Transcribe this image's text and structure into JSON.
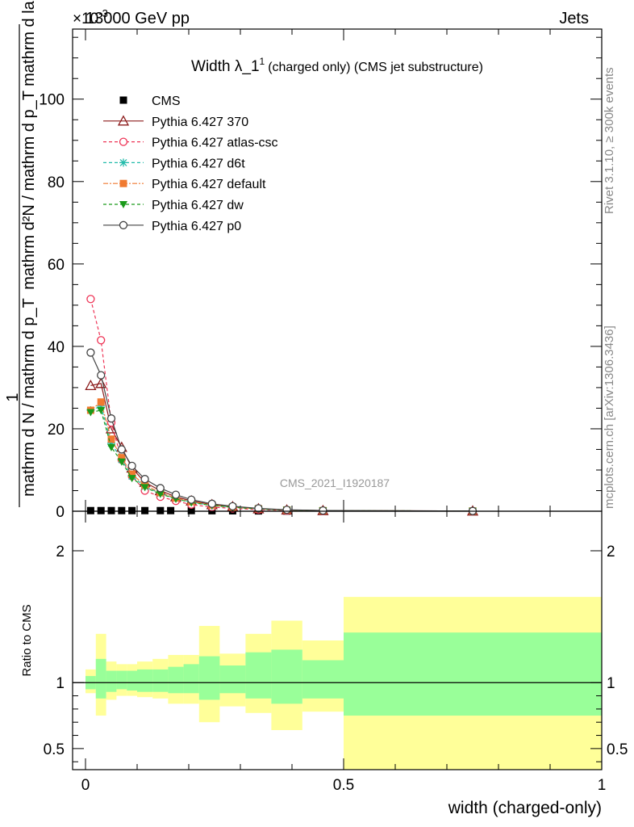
{
  "header": {
    "left": "13000 GeV pp",
    "right": "Jets",
    "exponent": "×10",
    "exp_sup": "-3"
  },
  "side": {
    "top": "Rivet 3.1.10, ≥ 300k events",
    "bottom": "mcplots.cern.ch [arXiv:1306.3436]"
  },
  "watermark": "CMS_2021_I1920187",
  "chart_data": [
    {
      "type": "scatter",
      "title": "Width λ_1",
      "title_sup": "1",
      "subtitle": "(charged only) (CMS jet substructure)",
      "ylabel_frac_num": "1",
      "ylabel_frac_den": "mathrm d N / mathrm d p_T",
      "ylabel_right": "mathrm d²N / mathrm d p_T mathrm d lambda",
      "ylim": [
        0,
        117
      ],
      "yticks": [
        "0",
        "20",
        "40",
        "60",
        "80",
        "100"
      ],
      "xlim": [
        -0.025,
        1.0
      ],
      "legend_position": "top-left",
      "series": [
        {
          "name": "CMS",
          "color": "#000000",
          "marker": "square",
          "x": [
            0.01,
            0.03,
            0.05,
            0.07,
            0.09,
            0.115,
            0.145,
            0.165,
            0.205,
            0.245,
            0.285,
            0.335,
            0.39,
            0.46,
            0.75
          ],
          "y": [
            0.15,
            0.15,
            0.15,
            0.15,
            0.15,
            0.15,
            0.15,
            0.15,
            0.15,
            0.12,
            0.1,
            0.08,
            0.05,
            0.03,
            0.01
          ]
        },
        {
          "name": "Pythia 6.427 370",
          "color": "#8b1a1a",
          "marker": "triangle",
          "dash": "",
          "x": [
            0.01,
            0.03,
            0.05,
            0.07,
            0.09,
            0.115,
            0.145,
            0.175,
            0.205,
            0.245,
            0.285,
            0.335,
            0.39,
            0.46,
            0.75
          ],
          "y": [
            30.5,
            31.0,
            20.0,
            15.5,
            10.5,
            7.0,
            5.0,
            3.5,
            2.5,
            1.6,
            1.1,
            0.6,
            0.3,
            0.15,
            0.05
          ]
        },
        {
          "name": "Pythia 6.427 atlas-csc",
          "color": "#ee3355",
          "marker": "circle-open",
          "dash": "4,3",
          "x": [
            0.01,
            0.03,
            0.05,
            0.07,
            0.09,
            0.115,
            0.145,
            0.175,
            0.205,
            0.245,
            0.285,
            0.335,
            0.39,
            0.46,
            0.75
          ],
          "y": [
            51.5,
            41.5,
            21.5,
            12.5,
            8.5,
            5.0,
            3.5,
            2.5,
            1.6,
            1.0,
            0.7,
            0.4,
            0.2,
            0.1,
            0.03
          ]
        },
        {
          "name": "Pythia 6.427 d6t",
          "color": "#22bbaa",
          "marker": "star",
          "dash": "4,3",
          "x": [
            0.01,
            0.03,
            0.05,
            0.07,
            0.09,
            0.115,
            0.145,
            0.175,
            0.205,
            0.245,
            0.285,
            0.335,
            0.39,
            0.46,
            0.75
          ],
          "y": [
            24.5,
            25.5,
            16.5,
            12.5,
            8.5,
            6.0,
            4.3,
            3.1,
            2.2,
            1.4,
            1.0,
            0.6,
            0.3,
            0.15,
            0.05
          ]
        },
        {
          "name": "Pythia 6.427 default",
          "color": "#f07a30",
          "marker": "square",
          "dash": "6,2,2,2",
          "x": [
            0.01,
            0.03,
            0.05,
            0.07,
            0.09,
            0.115,
            0.145,
            0.175,
            0.205,
            0.245,
            0.285,
            0.335,
            0.39,
            0.46,
            0.75
          ],
          "y": [
            24.5,
            26.5,
            17.5,
            13.0,
            9.0,
            6.3,
            4.5,
            3.2,
            2.3,
            1.5,
            1.0,
            0.6,
            0.3,
            0.15,
            0.05
          ]
        },
        {
          "name": "Pythia 6.427 dw",
          "color": "#1a9a1a",
          "marker": "triangle-down",
          "dash": "4,3",
          "x": [
            0.01,
            0.03,
            0.05,
            0.07,
            0.09,
            0.115,
            0.145,
            0.175,
            0.205,
            0.245,
            0.285,
            0.335,
            0.39,
            0.46,
            0.75
          ],
          "y": [
            24.0,
            24.5,
            15.5,
            12.0,
            8.0,
            5.8,
            4.2,
            3.0,
            2.1,
            1.4,
            0.95,
            0.55,
            0.3,
            0.15,
            0.05
          ]
        },
        {
          "name": "Pythia 6.427 p0",
          "color": "#444444",
          "marker": "circle-open",
          "dash": "",
          "x": [
            0.01,
            0.03,
            0.05,
            0.07,
            0.09,
            0.115,
            0.145,
            0.175,
            0.205,
            0.245,
            0.285,
            0.335,
            0.39,
            0.46,
            0.75
          ],
          "y": [
            38.5,
            33.0,
            22.5,
            15.0,
            11.0,
            7.8,
            5.6,
            4.0,
            2.8,
            1.8,
            1.2,
            0.7,
            0.35,
            0.17,
            0.06
          ]
        }
      ]
    },
    {
      "type": "area",
      "ylabel": "Ratio to CMS",
      "xlabel": "width (charged-only)",
      "ylim": [
        0.34,
        2.3
      ],
      "xlim": [
        -0.025,
        1.0
      ],
      "yticks": [
        "0.5",
        "1",
        "2"
      ],
      "xticks": [
        "0",
        "0.5",
        "1"
      ],
      "reference": 1.0,
      "bands": {
        "bins": [
          [
            0.0,
            0.02
          ],
          [
            0.02,
            0.04
          ],
          [
            0.04,
            0.06
          ],
          [
            0.06,
            0.08
          ],
          [
            0.08,
            0.1
          ],
          [
            0.1,
            0.13
          ],
          [
            0.13,
            0.16
          ],
          [
            0.16,
            0.19
          ],
          [
            0.19,
            0.22
          ],
          [
            0.22,
            0.26
          ],
          [
            0.26,
            0.31
          ],
          [
            0.31,
            0.36
          ],
          [
            0.36,
            0.42
          ],
          [
            0.42,
            0.5
          ],
          [
            0.5,
            1.0
          ]
        ],
        "stat_lo": [
          0.95,
          0.88,
          0.93,
          0.95,
          0.94,
          0.93,
          0.93,
          0.92,
          0.92,
          0.87,
          0.92,
          0.88,
          0.84,
          0.88,
          0.75
        ],
        "stat_hi": [
          1.05,
          1.18,
          1.09,
          1.09,
          1.09,
          1.1,
          1.1,
          1.12,
          1.14,
          1.2,
          1.13,
          1.23,
          1.25,
          1.17,
          1.38
        ],
        "total_lo": [
          0.92,
          0.75,
          0.87,
          0.9,
          0.9,
          0.89,
          0.88,
          0.84,
          0.84,
          0.7,
          0.82,
          0.77,
          0.64,
          0.78,
          0.34
        ],
        "total_hi": [
          1.1,
          1.37,
          1.16,
          1.14,
          1.14,
          1.16,
          1.18,
          1.21,
          1.21,
          1.43,
          1.22,
          1.37,
          1.47,
          1.32,
          1.65
        ]
      }
    }
  ]
}
